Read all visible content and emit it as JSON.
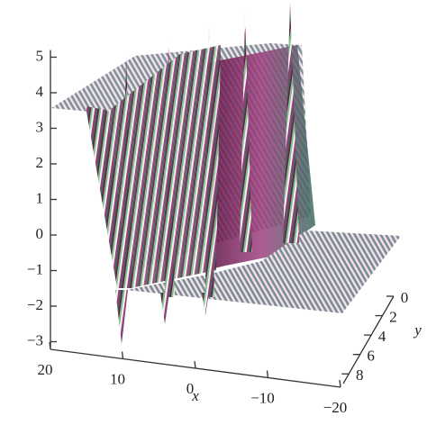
{
  "chart_data": {
    "type": "surface",
    "xlabel": "x",
    "ylabel": "y",
    "xlim": [
      20,
      -20
    ],
    "xticks": [
      20,
      10,
      0,
      {
        "value": -10,
        "label": "−10"
      },
      {
        "value": -20,
        "label": "−20"
      }
    ],
    "ylim": [
      0,
      9
    ],
    "yticks": [
      0,
      2,
      4,
      6,
      8
    ],
    "zlim": [
      -3.2,
      5.2
    ],
    "zticks": [
      {
        "value": -3,
        "label": "−3"
      },
      {
        "value": -2,
        "label": "−2"
      },
      {
        "value": -1,
        "label": "−1"
      },
      0,
      1,
      2,
      3,
      4,
      5
    ]
  }
}
